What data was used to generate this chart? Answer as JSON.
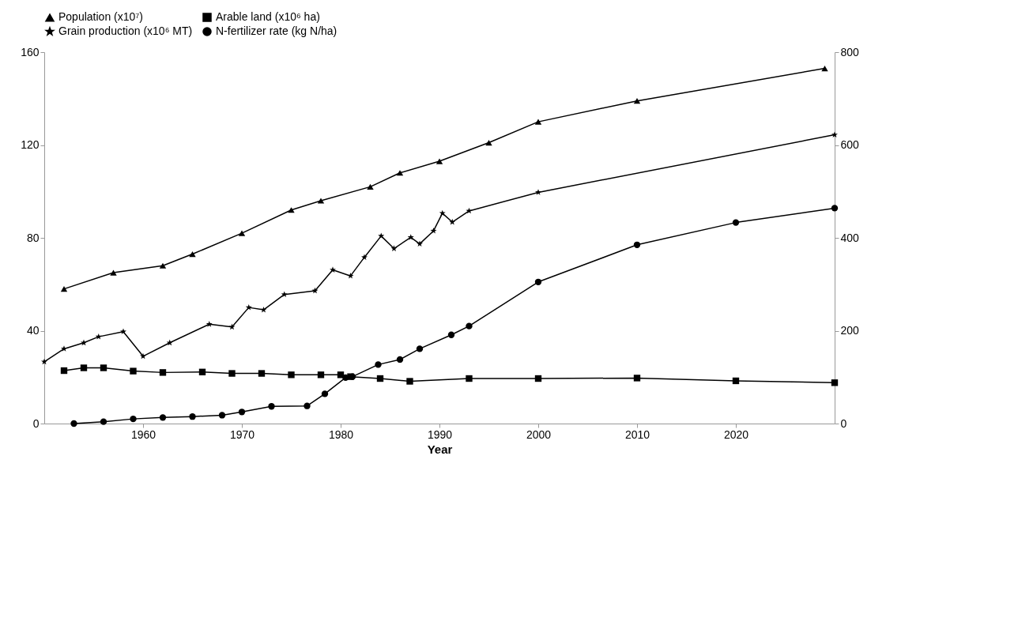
{
  "chart_data": {
    "type": "line",
    "xlabel": "Year",
    "xlim": [
      1950,
      2030
    ],
    "xticks": [
      1960,
      1970,
      1980,
      1990,
      2000,
      2010,
      2020
    ],
    "ylim": [
      0,
      160
    ],
    "yticks": [
      0,
      40,
      80,
      120,
      160
    ],
    "y2lim": [
      0,
      800
    ],
    "y2ticks": [
      0,
      200,
      400,
      600,
      800
    ],
    "legend": "top",
    "line_style": "solid",
    "series": [
      {
        "name": "Population (x10⁷)",
        "color": "#000000",
        "marker": "triangle",
        "x": [
          1952,
          1957,
          1962,
          1965,
          1970,
          1975,
          1978,
          1983,
          1986,
          1990,
          1995,
          2000,
          2010,
          2029
        ],
        "values": [
          58,
          65,
          68,
          73,
          82,
          92,
          96,
          102,
          108,
          113,
          121,
          130,
          139,
          153
        ]
      },
      {
        "name": "Arable land (x10⁶ ha)",
        "color": "#000000",
        "marker": "square",
        "axis": "y2",
        "x": [
          1952,
          1954,
          1956,
          1959,
          1962,
          1966,
          1969,
          1972,
          1975,
          1978,
          1980,
          1981,
          1984,
          1987,
          1993,
          2000,
          2010,
          2020,
          2030
        ],
        "values": [
          114,
          120,
          120,
          113,
          110,
          111,
          108,
          108,
          105,
          105,
          105,
          101,
          97,
          91,
          97,
          97,
          98,
          92,
          88
        ]
      },
      {
        "name": "Grain production (x10⁶ MT)",
        "color": "#000000",
        "marker": "star",
        "axis": "y2",
        "x": [
          1950,
          1952,
          1954,
          1955.5,
          1958,
          1960,
          1962.7,
          1966.7,
          1969,
          1970.7,
          1972.2,
          1974.3,
          1977.4,
          1979.2,
          1981,
          1982.4,
          1984.1,
          1985.4,
          1987.1,
          1988,
          1989.4,
          1990.3,
          1991.3,
          1993,
          2000,
          2030
        ],
        "values": [
          133,
          161,
          174,
          187,
          198,
          145,
          174,
          214,
          208,
          250,
          245,
          278,
          286,
          331,
          318,
          358,
          404,
          377,
          401,
          387,
          415,
          453,
          434,
          458,
          498,
          622
        ]
      },
      {
        "name": "N-fertilizer rate (kg N/ha)",
        "color": "#000000",
        "marker": "circle",
        "axis": "y2",
        "x": [
          1953,
          1956,
          1959,
          1962,
          1965,
          1968,
          1970,
          1973,
          1976.6,
          1978.4,
          1980.5,
          1981.2,
          1983.8,
          1986,
          1988,
          1991.2,
          1993,
          2000,
          2010,
          2020,
          2030
        ],
        "values": [
          0,
          4,
          10,
          13,
          15,
          18,
          25,
          37,
          38,
          64,
          99,
          101,
          127,
          138,
          161,
          191,
          210,
          305,
          385,
          433,
          464
        ]
      }
    ]
  }
}
